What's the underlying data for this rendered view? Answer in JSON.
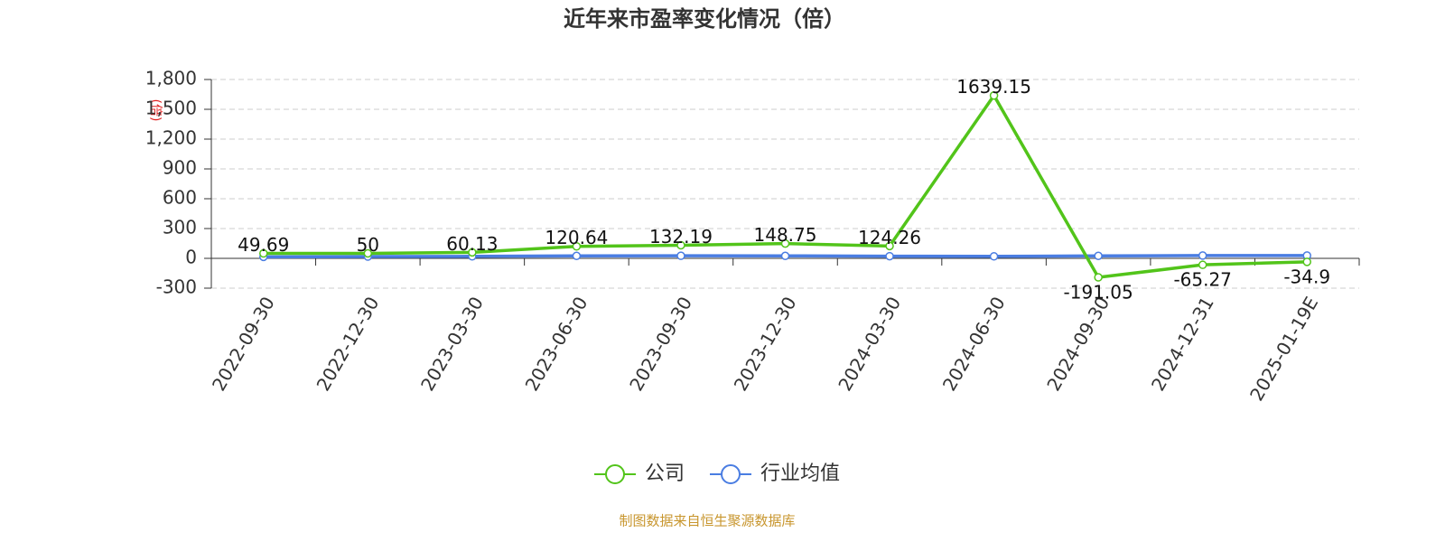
{
  "chart_data": {
    "type": "line",
    "title": "近年来市盈率变化情况（倍）",
    "y_label": "(倍)",
    "source": "制图数据来自恒生聚源数据库",
    "categories": [
      "2022-09-30",
      "2022-12-30",
      "2023-03-30",
      "2023-06-30",
      "2023-09-30",
      "2023-12-30",
      "2024-03-30",
      "2024-06-30",
      "2024-09-30",
      "2024-12-31",
      "2025-01-19E"
    ],
    "series": [
      {
        "name": "公司",
        "color": "#52c41a",
        "values": [
          49.69,
          50,
          60.13,
          120.64,
          132.19,
          148.75,
          124.26,
          1639.15,
          -191.05,
          -65.27,
          -34.9
        ],
        "labels": true
      },
      {
        "name": "行业均值",
        "color": "#4a7de2",
        "values": [
          15,
          18,
          20,
          25,
          26,
          25,
          22,
          20,
          25,
          28,
          28
        ],
        "labels": false
      }
    ],
    "ylim": [
      -300,
      1800
    ],
    "yticks": [
      -300,
      0,
      300,
      600,
      900,
      1200,
      {
        "value": 1200,
        "label": "1,200"
      },
      {
        "value": 1500,
        "label": "1,500"
      },
      {
        "value": 1800,
        "label": "1,800"
      }
    ],
    "grid": true
  }
}
